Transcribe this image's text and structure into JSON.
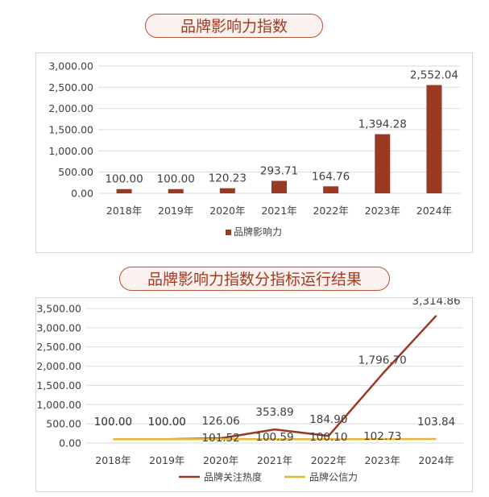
{
  "top_title": "品牌影响力指数",
  "bottom_title": "品牌影响力指数分指标运行结果",
  "colors": {
    "bar": "#9b3a23",
    "line1": "#9b3a23",
    "line2": "#e6b830",
    "grid": "#d9d9d9",
    "text": "#404040"
  },
  "chart_data": [
    {
      "type": "bar",
      "categories": [
        "2018年",
        "2019年",
        "2020年",
        "2021年",
        "2022年",
        "2023年",
        "2024年"
      ],
      "series": [
        {
          "name": "品牌影响力",
          "values": [
            100.0,
            100.0,
            120.23,
            293.71,
            164.76,
            1394.28,
            2552.04
          ]
        }
      ],
      "value_labels": [
        "100.00",
        "100.00",
        "120.23",
        "293.71",
        "164.76",
        "1,394.28",
        "2,552.04"
      ],
      "ylim": [
        0,
        3000
      ],
      "yticks": [
        "0.00",
        "500.00",
        "1,000.00",
        "1,500.00",
        "2,000.00",
        "2,500.00",
        "3,000.00"
      ],
      "grid": true,
      "legend": "bottom"
    },
    {
      "type": "line",
      "categories": [
        "2018年",
        "2019年",
        "2020年",
        "2021年",
        "2022年",
        "2023年",
        "2024年"
      ],
      "series": [
        {
          "name": "品牌关注热度",
          "values": [
            100.0,
            100.0,
            126.06,
            353.89,
            184.9,
            1796.7,
            3314.86
          ],
          "labels": [
            "100.00",
            "100.00",
            "126.06",
            "353.89",
            "184.90",
            "1,796.70",
            "3,314.86"
          ]
        },
        {
          "name": "品牌公信力",
          "values": [
            100.0,
            100.0,
            101.52,
            100.59,
            100.1,
            102.73,
            103.84
          ],
          "labels": [
            "100.00",
            "100.00",
            "101.52",
            "100.59",
            "100.10",
            "102.73",
            "103.84"
          ]
        }
      ],
      "ylim": [
        0,
        3500
      ],
      "yticks": [
        "0.00",
        "500.00",
        "1,000.00",
        "1,500.00",
        "2,000.00",
        "2,500.00",
        "3,000.00",
        "3,500.00"
      ],
      "grid": true,
      "legend": "bottom"
    }
  ]
}
